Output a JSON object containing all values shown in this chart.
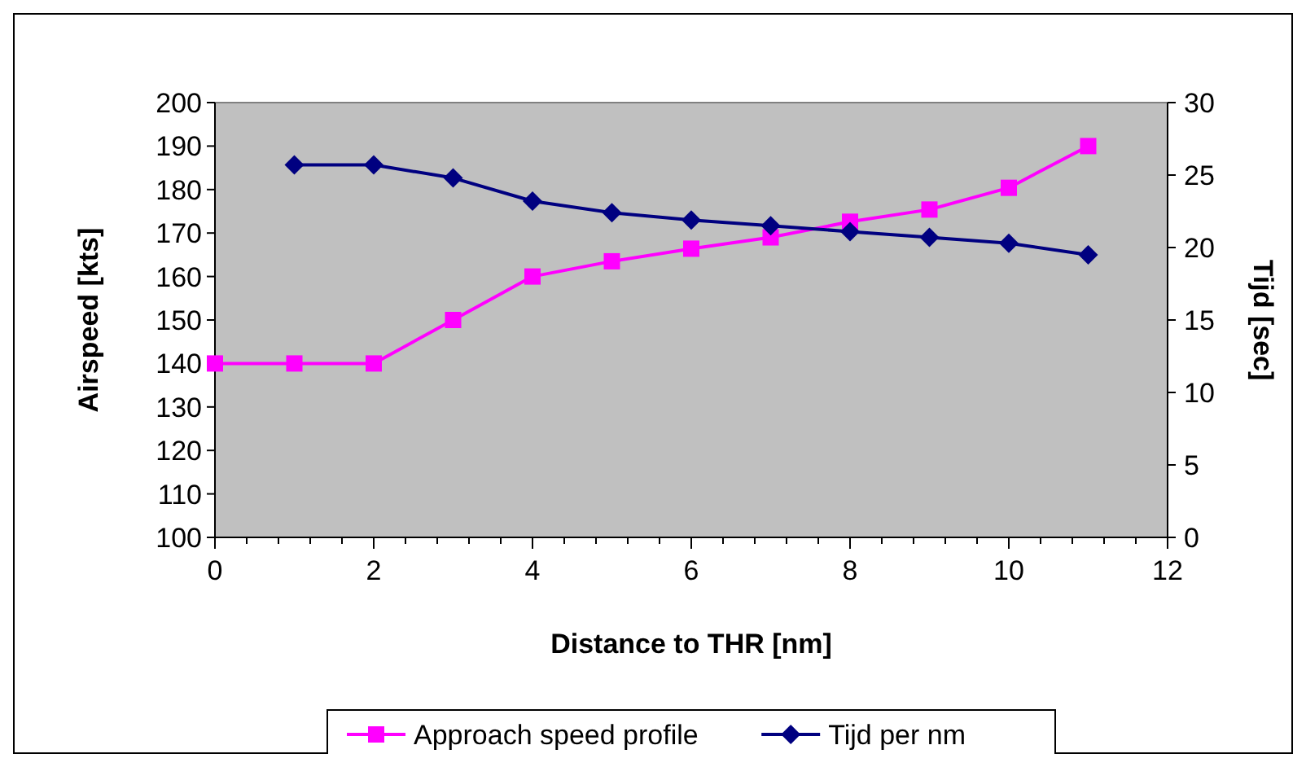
{
  "chart_data": {
    "type": "line",
    "xlabel": "Distance to THR [nm]",
    "ylabel": "Airspeed [kts]",
    "y2label": "Tijd [sec]",
    "xlim": [
      0,
      12
    ],
    "xticks": [
      0,
      {
        "value": 0.4,
        "label": null
      },
      {
        "value": 0.8,
        "label": null
      },
      {
        "value": 1.2,
        "label": null
      },
      {
        "value": 1.6,
        "label": null
      },
      2,
      {
        "value": 2.4,
        "label": null
      },
      {
        "value": 2.8,
        "label": null
      },
      {
        "value": 3.2,
        "label": null
      },
      {
        "value": 3.6,
        "label": null
      },
      4,
      {
        "value": 4.4,
        "label": null
      },
      {
        "value": 4.8,
        "label": null
      },
      {
        "value": 5.2,
        "label": null
      },
      {
        "value": 5.6,
        "label": null
      },
      6,
      {
        "value": 6.4,
        "label": null
      },
      {
        "value": 6.8,
        "label": null
      },
      {
        "value": 7.2,
        "label": null
      },
      {
        "value": 7.6,
        "label": null
      },
      8,
      {
        "value": 8.4,
        "label": null
      },
      {
        "value": 8.8,
        "label": null
      },
      {
        "value": 9.2,
        "label": null
      },
      {
        "value": 9.6,
        "label": null
      },
      10,
      {
        "value": 10.4,
        "label": null
      },
      {
        "value": 10.8,
        "label": null
      },
      {
        "value": 11.2,
        "label": null
      },
      {
        "value": 11.6,
        "label": null
      },
      12
    ],
    "ylim": [
      100,
      200
    ],
    "yticks": [
      100,
      110,
      120,
      130,
      140,
      150,
      160,
      170,
      180,
      190,
      200
    ],
    "y2lim": [
      0,
      30
    ],
    "y2ticks": [
      0,
      5,
      10,
      15,
      20,
      25,
      30
    ],
    "legend": "bottom",
    "grid": false,
    "series": [
      {
        "name": "Approach speed profile",
        "color": "#ff00ff",
        "marker": "square",
        "x": [
          0,
          1,
          2,
          3,
          4,
          5,
          6,
          7,
          8,
          9,
          10,
          11
        ],
        "values": [
          140,
          140,
          140,
          150,
          160,
          163.5,
          166.4,
          169,
          172.6,
          175.4,
          180.4,
          190
        ]
      },
      {
        "name": "Tijd per nm",
        "color": "#000080",
        "marker": "diamond",
        "axis": "y2",
        "x": [
          1,
          2,
          3,
          4,
          5,
          6,
          7,
          8,
          9,
          10,
          11
        ],
        "values": [
          25.7,
          25.7,
          24.8,
          23.2,
          22.4,
          21.9,
          21.5,
          21.1,
          20.7,
          20.3,
          19.5
        ]
      }
    ]
  }
}
